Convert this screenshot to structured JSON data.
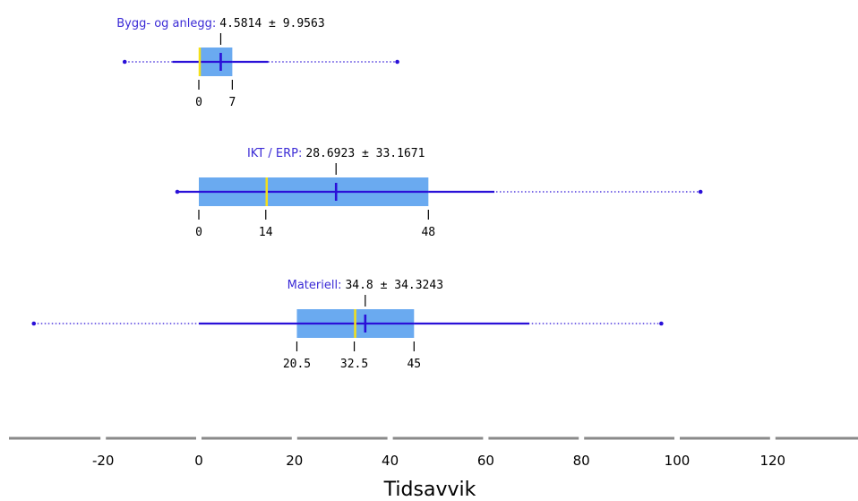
{
  "chart_data": {
    "type": "box",
    "xlabel": "Tidsavvik",
    "xlim": [
      -38,
      138
    ],
    "x_ticks": [
      "-20",
      "0",
      "20",
      "40",
      "60",
      "80",
      "100",
      "120"
    ],
    "x_tick_values": [
      -20,
      0,
      20,
      40,
      60,
      80,
      100,
      120
    ],
    "colors": {
      "box_fill": "#6aaaf0",
      "line": "#2a10d8",
      "median": "#f4e01a",
      "label": "#3b2bd6",
      "axis": "#8a8a8a"
    },
    "groups": [
      {
        "name": "Bygg- og anlegg",
        "stat": "4.5814 ± 9.9563",
        "mean": 4.5814,
        "sd": 9.9563,
        "q1": 0,
        "median": 0,
        "q3": 7,
        "whisker_low": -5.5,
        "whisker_high": 14.5,
        "dotted_low": -15.5,
        "dotted_high": 41.5,
        "q_labels": [
          "0",
          "7"
        ]
      },
      {
        "name": "IKT / ERP",
        "stat": "28.6923 ± 33.1671",
        "mean": 28.6923,
        "sd": 33.1671,
        "q1": 0,
        "median": 14,
        "q3": 48,
        "whisker_low": -4.5,
        "whisker_high": 61.8,
        "dotted_low": -4.5,
        "dotted_high": 104.9,
        "q_labels": [
          "0",
          "14",
          "48"
        ]
      },
      {
        "name": "Materiell",
        "stat": "34.8 ± 34.3243",
        "mean": 34.8,
        "sd": 34.3243,
        "q1": 20.5,
        "median": 32.5,
        "q3": 45,
        "whisker_low": 0,
        "whisker_high": 69.1,
        "dotted_low": -34.5,
        "dotted_high": 96.7,
        "q_labels": [
          "20.5",
          "32.5",
          "45"
        ]
      }
    ]
  }
}
